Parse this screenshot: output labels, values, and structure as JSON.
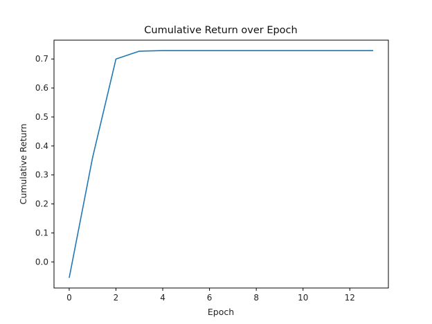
{
  "chart_data": {
    "type": "line",
    "title": "Cumulative Return over Epoch",
    "xlabel": "Epoch",
    "ylabel": "Cumulative Return",
    "xlim": [
      -0.65,
      13.65
    ],
    "ylim": [
      -0.09,
      0.765
    ],
    "xticks": [
      0,
      2,
      4,
      6,
      8,
      10,
      12
    ],
    "yticks": [
      0.0,
      0.1,
      0.2,
      0.3,
      0.4,
      0.5,
      0.6,
      0.7
    ],
    "grid": false,
    "line_color": "#1f77b4",
    "series": [
      {
        "x": [
          0,
          1,
          2,
          3,
          4,
          5,
          6,
          7,
          8,
          9,
          10,
          11,
          12,
          13
        ],
        "values": [
          -0.055,
          0.36,
          0.7,
          0.727,
          0.729,
          0.729,
          0.729,
          0.729,
          0.729,
          0.729,
          0.729,
          0.729,
          0.729,
          0.729
        ]
      }
    ]
  }
}
